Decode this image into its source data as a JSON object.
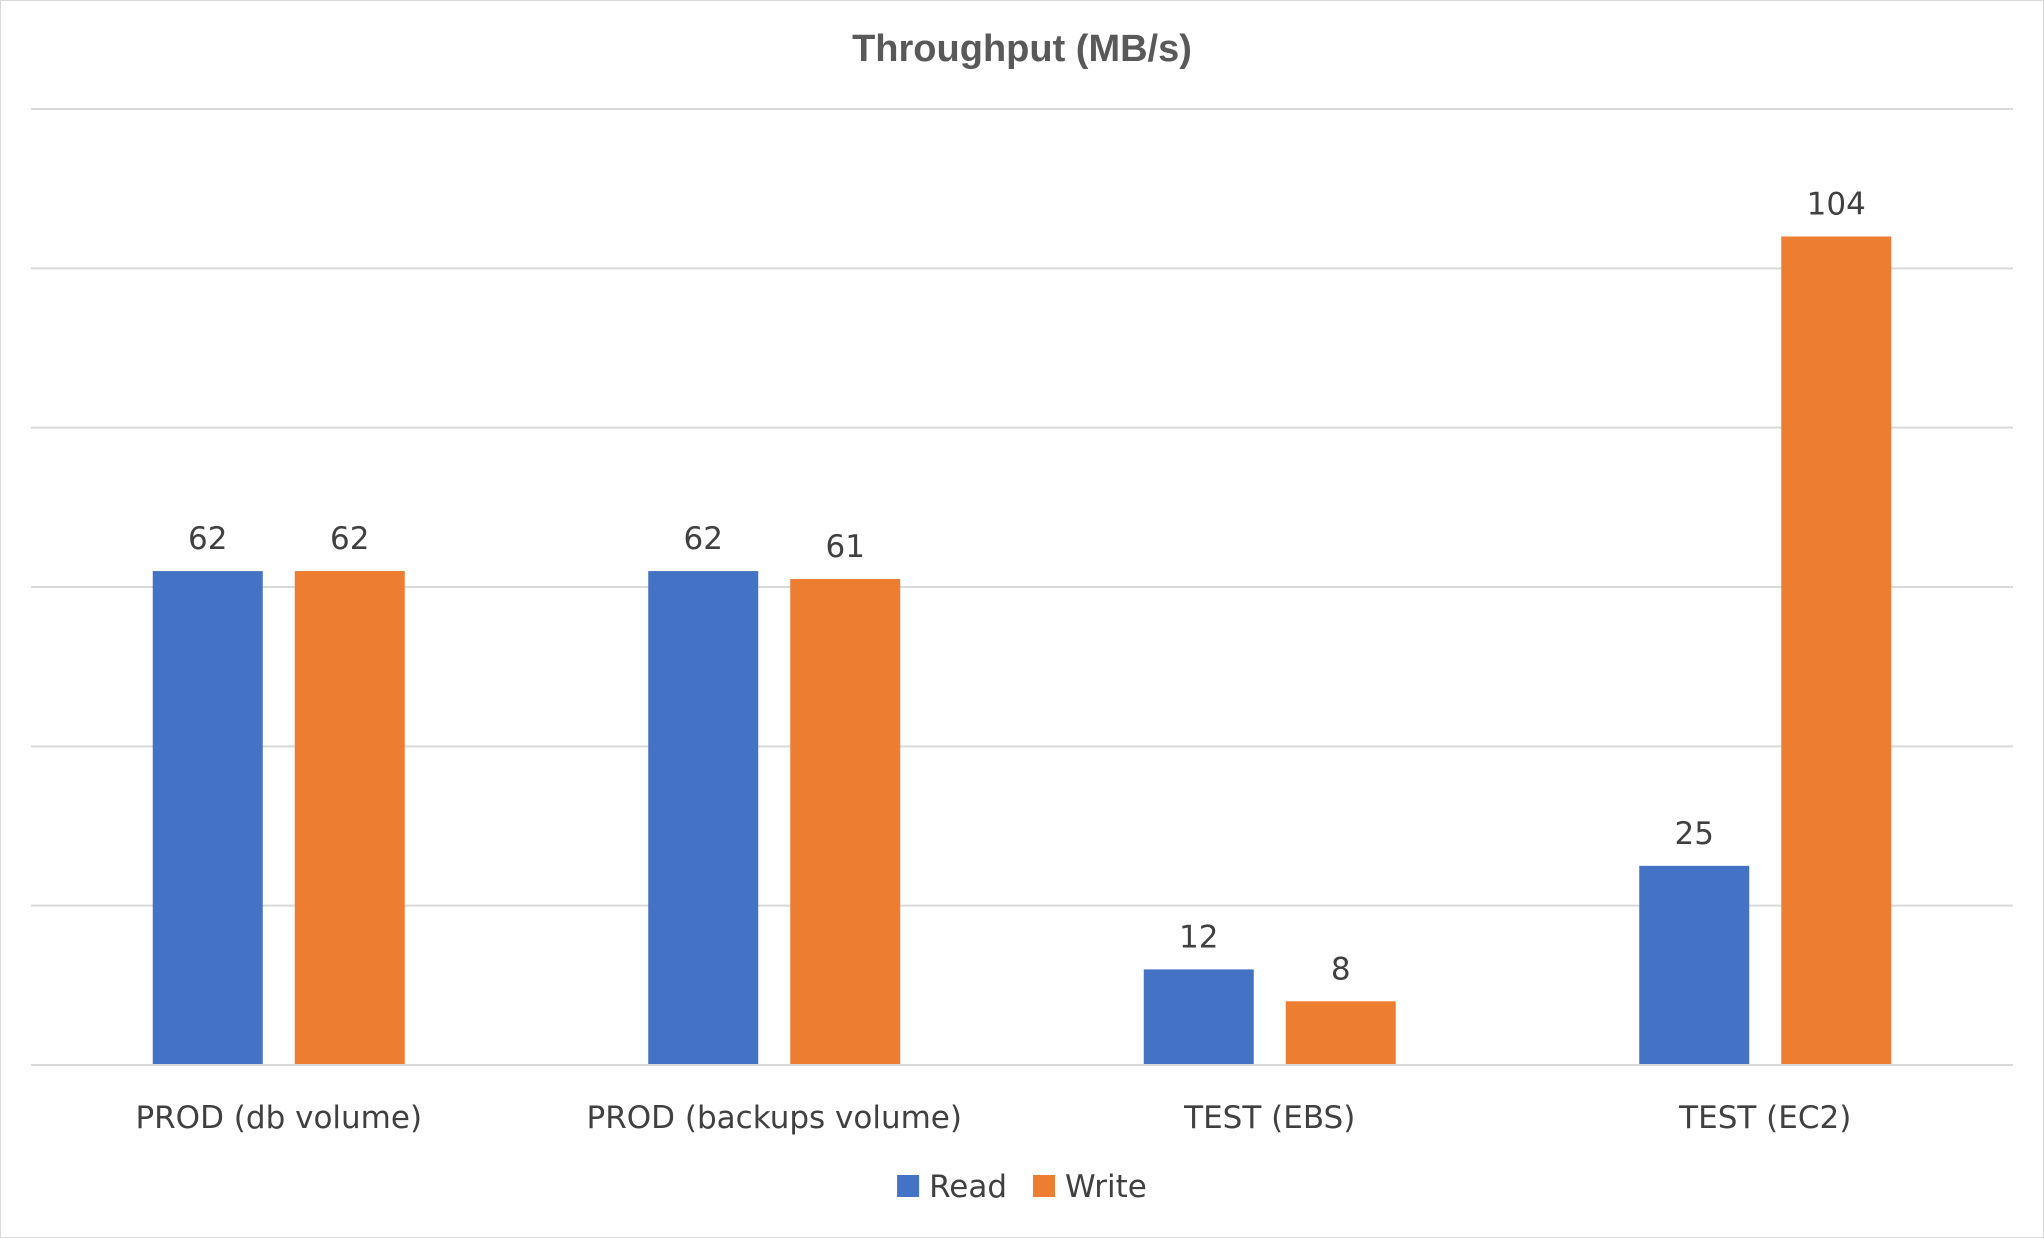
{
  "chart_data": {
    "type": "bar",
    "title": "Throughput (MB/s)",
    "xlabel": "",
    "ylabel": "",
    "categories": [
      "PROD (db volume)",
      "PROD (backups volume)",
      "TEST (EBS)",
      "TEST (EC2)"
    ],
    "series": [
      {
        "name": "Read",
        "color": "#4472C4",
        "values": [
          62,
          62,
          12,
          25
        ]
      },
      {
        "name": "Write",
        "color": "#ED7D31",
        "values": [
          62,
          61,
          8,
          104
        ]
      }
    ],
    "data_labels": true,
    "ylim": [
      0,
      120
    ],
    "y_gridline_step": 20,
    "y_tick_labels_visible": false,
    "grid": true,
    "legend_position": "bottom"
  }
}
